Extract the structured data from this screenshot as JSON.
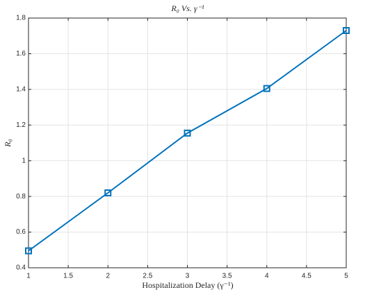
{
  "chart_data": {
    "type": "line",
    "title": "R₀ Vs. γ⁻¹",
    "x_label": "Hospitalization Delay (γ⁻¹)",
    "y_label": "R₀",
    "series": [
      {
        "name": "R₀",
        "color": "#0072bd",
        "x": [
          1,
          2,
          3,
          4,
          5
        ],
        "values": [
          0.495,
          0.82,
          1.155,
          1.405,
          1.73
        ]
      }
    ],
    "xlim": [
      1,
      5
    ],
    "xticks": [
      1,
      1.5,
      2,
      2.5,
      3,
      3.5,
      4,
      4.5,
      5
    ],
    "ylim": [
      0.4,
      1.8
    ],
    "yticks": [
      0.4,
      0.6,
      0.8,
      1,
      1.2,
      1.4,
      1.6,
      1.8
    ],
    "grid": true,
    "marker": "square"
  }
}
